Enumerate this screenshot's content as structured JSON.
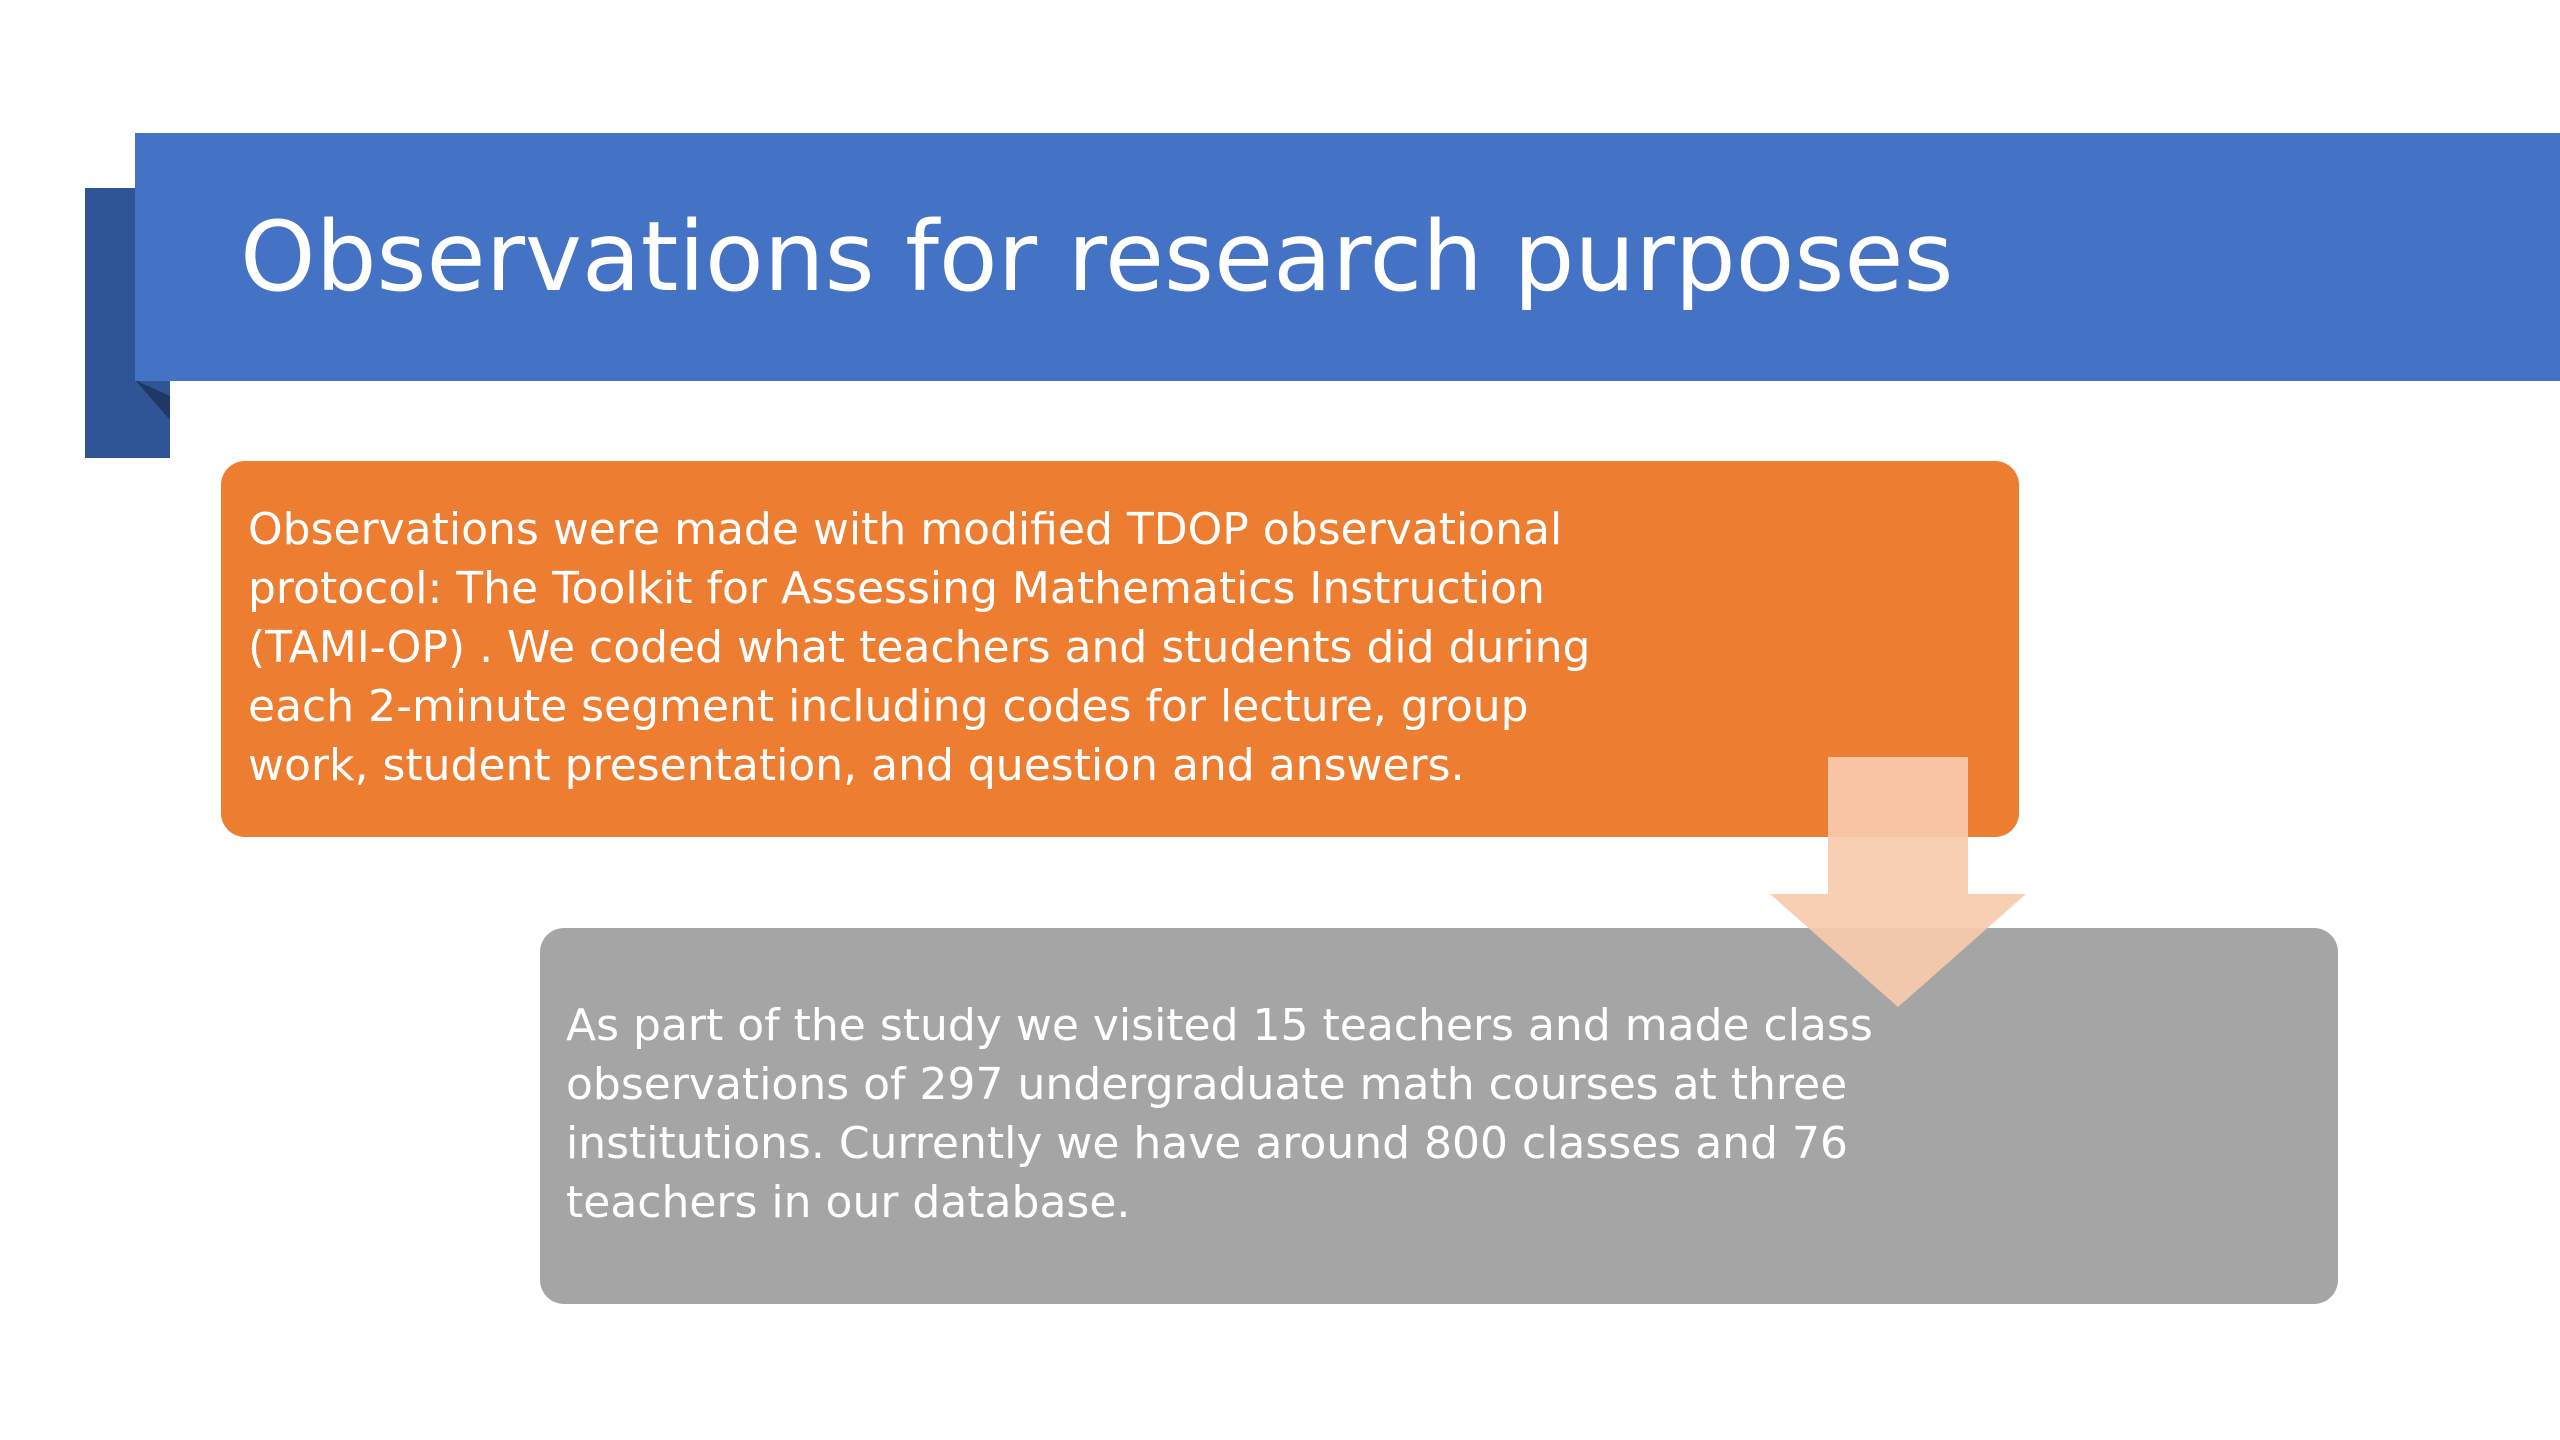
{
  "slide": {
    "title": "Observations for research purposes",
    "box_top": {
      "text": "Observations were made with modified TDOP observational protocol: The Toolkit for Assessing Mathematics Instruction (TAMI-OP) . We coded what teachers and students did during each 2-minute segment including codes for lecture, group work, student presentation, and question and answers."
    },
    "box_bottom": {
      "text": "As part of the study we visited 15 teachers and made class observations of 297 undergraduate math courses at three institutions.  Currently we have around 800 classes and 76 teachers in our database."
    }
  },
  "colors": {
    "banner": "#4472c4",
    "banner_fold": "#2f5597",
    "box_top": "#ed7d31",
    "box_bottom": "#a5a5a5",
    "arrow": "#f8cbad"
  },
  "icons": {
    "arrow": "down-arrow-icon"
  }
}
